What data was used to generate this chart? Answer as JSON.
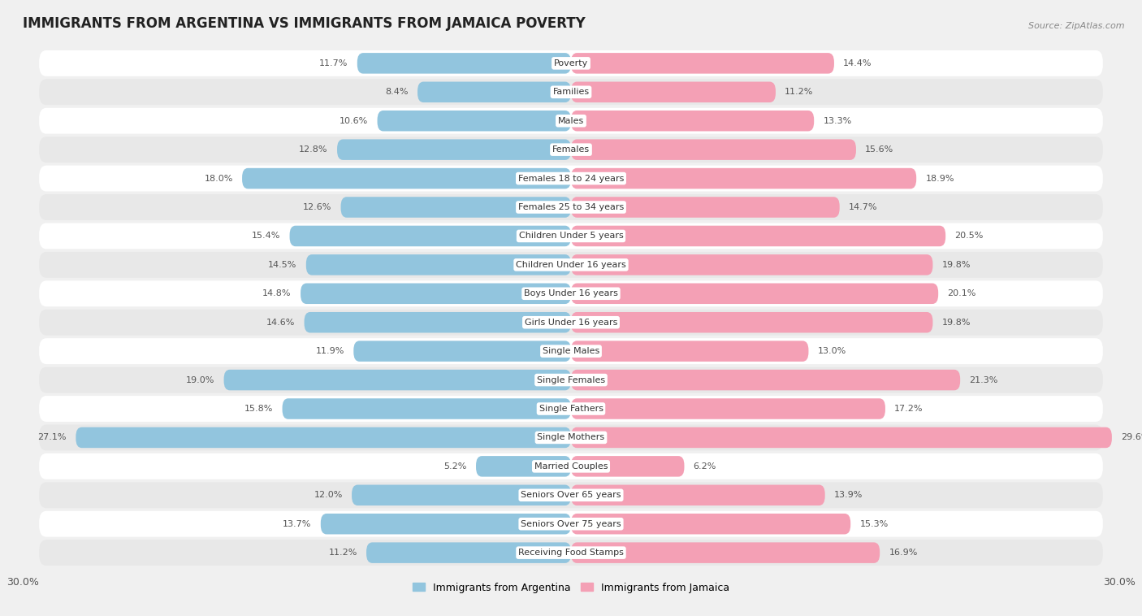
{
  "title": "IMMIGRANTS FROM ARGENTINA VS IMMIGRANTS FROM JAMAICA POVERTY",
  "source": "Source: ZipAtlas.com",
  "categories": [
    "Poverty",
    "Families",
    "Males",
    "Females",
    "Females 18 to 24 years",
    "Females 25 to 34 years",
    "Children Under 5 years",
    "Children Under 16 years",
    "Boys Under 16 years",
    "Girls Under 16 years",
    "Single Males",
    "Single Females",
    "Single Fathers",
    "Single Mothers",
    "Married Couples",
    "Seniors Over 65 years",
    "Seniors Over 75 years",
    "Receiving Food Stamps"
  ],
  "argentina_values": [
    11.7,
    8.4,
    10.6,
    12.8,
    18.0,
    12.6,
    15.4,
    14.5,
    14.8,
    14.6,
    11.9,
    19.0,
    15.8,
    27.1,
    5.2,
    12.0,
    13.7,
    11.2
  ],
  "jamaica_values": [
    14.4,
    11.2,
    13.3,
    15.6,
    18.9,
    14.7,
    20.5,
    19.8,
    20.1,
    19.8,
    13.0,
    21.3,
    17.2,
    29.6,
    6.2,
    13.9,
    15.3,
    16.9
  ],
  "argentina_color": "#92C5DE",
  "jamaica_color": "#F4A0B5",
  "argentina_label": "Immigrants from Argentina",
  "jamaica_label": "Immigrants from Jamaica",
  "x_max": 30.0,
  "background_color": "#f0f0f0",
  "row_color_light": "#ffffff",
  "row_color_dark": "#e8e8e8",
  "title_fontsize": 12,
  "label_fontsize": 8.0,
  "value_fontsize": 8.0,
  "bar_height": 0.72
}
